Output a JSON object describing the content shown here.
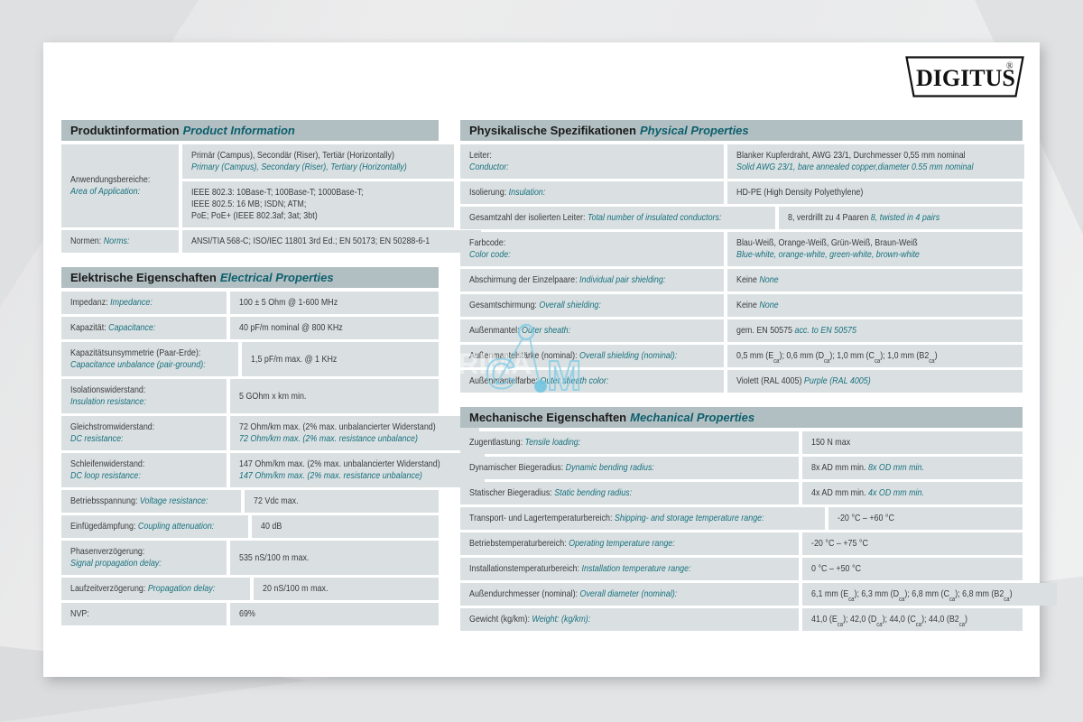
{
  "logo": {
    "text": "DIGITUS",
    "reg": "®"
  },
  "watermark": {
    "back_text": "PRIMA",
    "letter_c": "C",
    "letter_m": "M"
  },
  "colors": {
    "accent_teal": "#17707d",
    "header_bar": "#b2bfc2",
    "cell_bg": "#dae0e2",
    "watermark_blue": "#7fcbe4"
  },
  "tables": {
    "product": {
      "label_width": 130,
      "header": {
        "de": "Produktinformation",
        "en": "Product Information"
      },
      "rows": [
        {
          "label": {
            "de": "Anwendungsbereiche:",
            "en": "Area of Application:",
            "stacked": true
          },
          "cells": [
            {
              "lines": [
                {
                  "de": "Primär (Campus), Secondär (Riser), Tertiär (Horizontally)",
                  "en": ""
                },
                {
                  "de": "",
                  "en": "Primary (Campus), Secondary (Riser), Tertiary (Horizontally)"
                }
              ]
            },
            {
              "lines": [
                {
                  "de": "IEEE 802.3: 10Base-T; 100Base-T; 1000Base-T;",
                  "en": ""
                },
                {
                  "de": "IEEE 802.5: 16 MB; ISDN; ATM;",
                  "en": ""
                },
                {
                  "de": "PoE; PoE+ (IEEE 802.3af; 3at; 3bt)",
                  "en": ""
                }
              ]
            }
          ]
        },
        {
          "label": {
            "de": "Normen:",
            "en": "Norms:",
            "stacked": false
          },
          "cells": [
            {
              "lines": [
                {
                  "de": "ANSI/TIA 568-C; ISO/IEC 11801 3rd Ed.; EN 50173; EN 50288-6-1",
                  "en": ""
                }
              ]
            }
          ]
        }
      ]
    },
    "electrical": {
      "label_width": 183,
      "header": {
        "de": "Elektrische Eigenschaften",
        "en": "Electrical Properties"
      },
      "rows": [
        {
          "label": {
            "de": "Impedanz:",
            "en": "Impedance:",
            "stacked": false
          },
          "cells": [
            {
              "lines": [
                {
                  "de": "100 ± 5 Ohm @ 1-600 MHz",
                  "en": ""
                }
              ]
            }
          ]
        },
        {
          "label": {
            "de": "Kapazität:",
            "en": "Capacitance:",
            "stacked": false
          },
          "cells": [
            {
              "lines": [
                {
                  "de": "40 pF/m nominal @ 800 KHz",
                  "en": ""
                }
              ]
            }
          ]
        },
        {
          "label": {
            "de": "Kapazitätsunsymmetrie (Paar-Erde):",
            "en": "Capacitance unbalance (pair-ground):",
            "stacked": true
          },
          "cells": [
            {
              "lines": [
                {
                  "de": "1,5 pF/m max. @ 1 KHz",
                  "en": ""
                }
              ]
            }
          ]
        },
        {
          "label": {
            "de": "Isolationswiderstand:",
            "en": "Insulation resistance:",
            "stacked": true
          },
          "cells": [
            {
              "lines": [
                {
                  "de": "5 GOhm x km min.",
                  "en": ""
                }
              ]
            }
          ]
        },
        {
          "label": {
            "de": "Gleichstromwiderstand:",
            "en": "DC resistance:",
            "stacked": true
          },
          "cells": [
            {
              "lines": [
                {
                  "de": "72 Ohm/km max. (2% max. unbalancierter Widerstand)",
                  "en": ""
                },
                {
                  "de": "",
                  "en": "72 Ohm/km max. (2% max. resistance unbalance)"
                }
              ]
            }
          ]
        },
        {
          "label": {
            "de": "Schleifenwiderstand:",
            "en": "DC loop resistance:",
            "stacked": true
          },
          "cells": [
            {
              "lines": [
                {
                  "de": "147 Ohm/km max. (2% max. unbalancierter Widerstand)",
                  "en": ""
                },
                {
                  "de": "",
                  "en": "147 Ohm/km max. (2% max. resistance unbalance)"
                }
              ]
            }
          ]
        },
        {
          "label": {
            "de": "Betriebsspannung:",
            "en": "Voltage resistance:",
            "stacked": false
          },
          "cells": [
            {
              "lines": [
                {
                  "de": "72 Vdc max.",
                  "en": ""
                }
              ]
            }
          ]
        },
        {
          "label": {
            "de": "Einfügedämpfung:",
            "en": "Coupling attenuation:",
            "stacked": false
          },
          "cells": [
            {
              "lines": [
                {
                  "de": "40 dB",
                  "en": ""
                }
              ]
            }
          ]
        },
        {
          "label": {
            "de": "Phasenverzögerung:",
            "en": "Signal propagation delay:",
            "stacked": true
          },
          "cells": [
            {
              "lines": [
                {
                  "de": "535 nS/100 m max.",
                  "en": ""
                }
              ]
            }
          ]
        },
        {
          "label": {
            "de": "Laufzeitverzögerung:",
            "en": "Propagation delay:",
            "stacked": false
          },
          "cells": [
            {
              "lines": [
                {
                  "de": "20 nS/100 m max.",
                  "en": ""
                }
              ]
            }
          ]
        },
        {
          "label": {
            "de": "NVP:",
            "en": "",
            "stacked": false
          },
          "cells": [
            {
              "lines": [
                {
                  "de": "69%",
                  "en": ""
                }
              ]
            }
          ]
        }
      ]
    },
    "physical": {
      "label_width": 292,
      "header": {
        "de": "Physikalische Spezifikationen",
        "en": "Physical Properties"
      },
      "rows": [
        {
          "label": {
            "de": "Leiter:",
            "en": "Conductor:",
            "stacked": true
          },
          "cells": [
            {
              "lines": [
                {
                  "de": "Blanker Kupferdraht, AWG 23/1, Durchmesser 0,55 mm nominal",
                  "en": ""
                },
                {
                  "de": "",
                  "en": "Solid AWG 23/1, bare annealed copper,diameter 0.55 mm nominal"
                }
              ]
            }
          ]
        },
        {
          "label": {
            "de": "Isolierung:",
            "en": "Insulation:",
            "stacked": false
          },
          "cells": [
            {
              "lines": [
                {
                  "de": "HD-PE (High Density Polyethylene)",
                  "en": ""
                }
              ]
            }
          ]
        },
        {
          "label": {
            "de": "Gesamtzahl der isolierten Leiter:",
            "en": "Total number of insulated conductors:",
            "stacked": false
          },
          "cells": [
            {
              "lines": [
                {
                  "de": "8, verdrillt zu 4 Paaren",
                  "en": "8, twisted in 4 pairs"
                }
              ]
            }
          ]
        },
        {
          "label": {
            "de": "Farbcode:",
            "en": "Color code:",
            "stacked": true
          },
          "cells": [
            {
              "lines": [
                {
                  "de": "Blau-Weiß, Orange-Weiß, Grün-Weiß, Braun-Weiß",
                  "en": ""
                },
                {
                  "de": "",
                  "en": "Blue-white, orange-white, green-white, brown-white"
                }
              ]
            }
          ]
        },
        {
          "label": {
            "de": "Abschirmung der Einzelpaare:",
            "en": "Individual pair shielding:",
            "stacked": false
          },
          "cells": [
            {
              "lines": [
                {
                  "de": "Keine",
                  "en": "None"
                }
              ]
            }
          ]
        },
        {
          "label": {
            "de": "Gesamtschirmung:",
            "en": "Overall shielding:",
            "stacked": false
          },
          "cells": [
            {
              "lines": [
                {
                  "de": "Keine",
                  "en": "None"
                }
              ]
            }
          ]
        },
        {
          "label": {
            "de": "Außenmantel:",
            "en": "Outer sheath:",
            "stacked": false
          },
          "cells": [
            {
              "lines": [
                {
                  "de": "gem. EN 50575",
                  "en": "acc. to EN 50575"
                }
              ]
            }
          ]
        },
        {
          "label": {
            "de": "Außenmantelstärke (nominal):",
            "en": "Overall shielding (nominal):",
            "stacked": false
          },
          "cells": [
            {
              "lines": [
                {
                  "de": "0,5 mm (E~ca~); 0,6 mm (D~ca~); 1,0 mm (C~ca~); 1,0 mm (B2~ca~)",
                  "en": ""
                }
              ]
            }
          ]
        },
        {
          "label": {
            "de": "Außenmantelfarbe:",
            "en": "Outer sheath color:",
            "stacked": false
          },
          "cells": [
            {
              "lines": [
                {
                  "de": "Violett (RAL 4005)",
                  "en": "Purple (RAL 4005)"
                }
              ]
            }
          ]
        }
      ]
    },
    "mechanical": {
      "label_width": 375,
      "header": {
        "de": "Mechanische Eigenschaften",
        "en": "Mechanical Properties"
      },
      "rows": [
        {
          "label": {
            "de": "Zugentlastung:",
            "en": "Tensile loading:",
            "stacked": false
          },
          "cells": [
            {
              "lines": [
                {
                  "de": "150 N max",
                  "en": ""
                }
              ]
            }
          ]
        },
        {
          "label": {
            "de": "Dynamischer Biegeradius:",
            "en": "Dynamic bending radius:",
            "stacked": false
          },
          "cells": [
            {
              "lines": [
                {
                  "de": "8x AD mm min.",
                  "en": "8x OD mm min."
                }
              ]
            }
          ]
        },
        {
          "label": {
            "de": "Statischer Biegeradius:",
            "en": "Static bending radius:",
            "stacked": false
          },
          "cells": [
            {
              "lines": [
                {
                  "de": "4x AD mm min.",
                  "en": "4x OD mm min."
                }
              ]
            }
          ]
        },
        {
          "label": {
            "de": "Transport- und Lagertemperaturbereich:",
            "en": "Shipping- and storage temperature range:",
            "stacked": false
          },
          "cells": [
            {
              "lines": [
                {
                  "de": "-20 °C – +60 °C",
                  "en": ""
                }
              ]
            }
          ]
        },
        {
          "label": {
            "de": "Betriebstemperaturbereich:",
            "en": "Operating temperature range:",
            "stacked": false
          },
          "cells": [
            {
              "lines": [
                {
                  "de": "-20 °C – +75 °C",
                  "en": ""
                }
              ]
            }
          ]
        },
        {
          "label": {
            "de": "Installationstemperaturbereich:",
            "en": "Installation temperature range:",
            "stacked": false
          },
          "cells": [
            {
              "lines": [
                {
                  "de": "0 °C – +50 °C",
                  "en": ""
                }
              ]
            }
          ]
        },
        {
          "label": {
            "de": "Außendurchmesser (nominal):",
            "en": "Overall diameter (nominal):",
            "stacked": false
          },
          "cells": [
            {
              "lines": [
                {
                  "de": "6,1 mm (E~ca~); 6,3 mm (D~ca~); 6,8 mm (C~ca~); 6,8 mm (B2~ca~)",
                  "en": ""
                }
              ]
            }
          ]
        },
        {
          "label": {
            "de": "Gewicht (kg/km):",
            "en": "Weight: (kg/km):",
            "stacked": false
          },
          "cells": [
            {
              "lines": [
                {
                  "de": "41,0 (E~ca~); 42,0 (D~ca~); 44,0 (C~ca~); 44,0 (B2~ca~)",
                  "en": ""
                }
              ]
            }
          ]
        }
      ]
    }
  }
}
